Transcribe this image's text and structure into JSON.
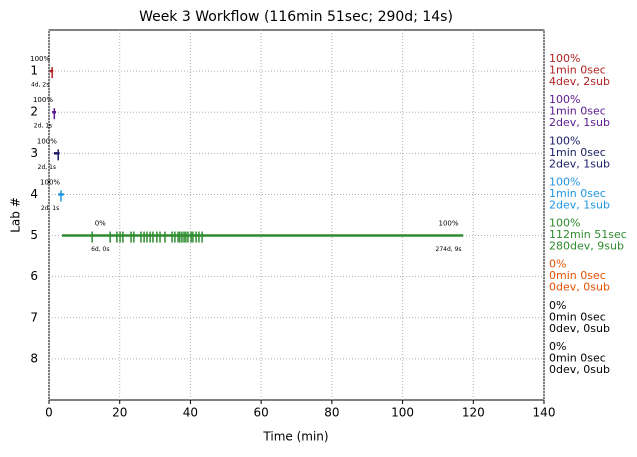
{
  "chart_data": {
    "type": "timeline",
    "title": "Week 3 Workflow (116min 51sec; 290d; 14s)",
    "xlabel": "Time (min)",
    "ylabel": "Lab #",
    "xlim": [
      0,
      140
    ],
    "xticks": [
      0,
      20,
      40,
      60,
      80,
      100,
      120,
      140
    ],
    "ylim": [
      9,
      0
    ],
    "yticks": [
      1,
      2,
      3,
      4,
      5,
      6,
      7,
      8
    ],
    "grid": true,
    "labs": [
      {
        "color": "#b22222",
        "start": 0.2,
        "end": 1.2,
        "ticks": [
          0.9
        ],
        "annotations": [
          {
            "x": -2.5,
            "top": "100%",
            "bottom": "4d, 2s"
          }
        ],
        "summary": [
          "100%",
          "1min 0sec",
          "4dev, 2sub"
        ]
      },
      {
        "color": "#5b1a8f",
        "start": 0.9,
        "end": 2.0,
        "ticks": [
          1.5
        ],
        "annotations": [
          {
            "x": -1.7,
            "top": "100%",
            "bottom": "2d, 1s"
          }
        ],
        "summary": [
          "100%",
          "1min 0sec",
          "2dev, 1sub"
        ]
      },
      {
        "color": "#1a1f66",
        "start": 1.4,
        "end": 3.0,
        "ticks": [
          2.6
        ],
        "annotations": [
          {
            "x": -0.6,
            "top": "100%",
            "bottom": "2d, 1s"
          }
        ],
        "summary": [
          "100%",
          "1min 0sec",
          "2dev, 1sub"
        ]
      },
      {
        "color": "#2196e0",
        "start": 2.6,
        "end": 4.2,
        "ticks": [
          3.4
        ],
        "annotations": [
          {
            "x": 0.3,
            "top": "100%",
            "bottom": "2d, 1s"
          }
        ],
        "summary": [
          "100%",
          "1min 0sec",
          "2dev, 1sub"
        ]
      },
      {
        "color": "#2e8b2e",
        "start": 3.7,
        "end": 117.1,
        "ticks": [
          12.2,
          17.3,
          19.2,
          20.1,
          20.9,
          23.2,
          24.0,
          26.0,
          26.9,
          27.7,
          28.6,
          29.4,
          30.5,
          31.4,
          32.8,
          34.8,
          35.6,
          36.5,
          37.0,
          37.6,
          38.2,
          38.7,
          39.3,
          40.2,
          40.7,
          41.6,
          42.4,
          43.3
        ],
        "annotations": [
          {
            "x": 14.5,
            "top": "0%",
            "bottom": "6d, 0s"
          },
          {
            "x": 113,
            "top": "100%",
            "bottom": "274d, 9s"
          }
        ],
        "summary": [
          "100%",
          "112min 51sec",
          "280dev, 9sub"
        ]
      },
      {
        "color": "#e65100",
        "summary": [
          "0%",
          "0min 0sec",
          "0dev, 0sub"
        ]
      },
      {
        "color": "#000000",
        "summary": [
          "0%",
          "0min 0sec",
          "0dev, 0sub"
        ]
      },
      {
        "color": "#000000",
        "summary": [
          "0%",
          "0min 0sec",
          "0dev, 0sub"
        ]
      }
    ]
  }
}
